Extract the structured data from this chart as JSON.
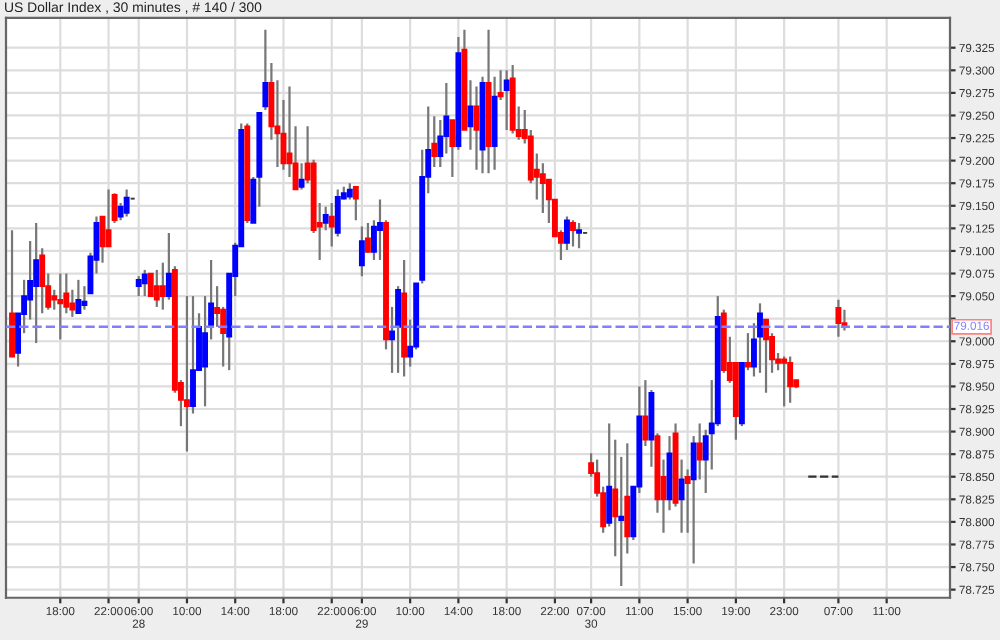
{
  "chart_data": {
    "type": "candlestick",
    "title": "US Dollar Index , 30 minutes , # 140 / 300",
    "categories": [
      null,
      null,
      null,
      null,
      null,
      null,
      null,
      null,
      "18:00",
      null,
      null,
      null,
      null,
      null,
      null,
      null,
      "22:00",
      null,
      null,
      null,
      null,
      "06:00\n28",
      null,
      null,
      null,
      null,
      null,
      null,
      null,
      "10:00",
      null,
      null,
      null,
      null,
      null,
      null,
      null,
      "14:00",
      null,
      null,
      null,
      null,
      null,
      null,
      null,
      "18:00",
      null,
      null,
      null,
      null,
      null,
      null,
      null,
      "22:00",
      null,
      null,
      null,
      null,
      "06:00\n29",
      null,
      null,
      null,
      null,
      null,
      null,
      null,
      "10:00",
      null,
      null,
      null,
      null,
      null,
      null,
      null,
      "14:00",
      null,
      null,
      null,
      null,
      null,
      null,
      null,
      "18:00",
      null,
      null,
      null,
      null,
      null,
      null,
      null,
      "22:00",
      null,
      null,
      null,
      null,
      null,
      "07:00\n30",
      null,
      null,
      null,
      null,
      null,
      null,
      null,
      "11:00",
      null,
      null,
      null,
      null,
      null,
      null,
      null,
      "15:00",
      null,
      null,
      null,
      null,
      null,
      null,
      null,
      "19:00",
      null,
      null,
      null,
      null,
      null,
      null,
      null,
      "23:00",
      null,
      null,
      null,
      null,
      null,
      null,
      null,
      null,
      "07:00",
      null,
      null,
      null,
      null,
      null,
      null,
      null,
      "11:00",
      null,
      null,
      null,
      null,
      null,
      null,
      null,
      null,
      null,
      null
    ],
    "ohlc": [
      [
        79.031,
        79.123,
        78.983,
        78.983
      ],
      [
        78.987,
        79.031,
        78.972,
        79.031
      ],
      [
        79.03,
        79.068,
        79.009,
        79.05
      ],
      [
        79.046,
        79.111,
        79.024,
        79.067
      ],
      [
        79.061,
        79.131,
        78.998,
        79.09
      ],
      [
        79.095,
        79.103,
        79.031,
        79.061
      ],
      [
        79.061,
        79.075,
        79.035,
        79.038
      ],
      [
        79.05,
        79.057,
        79.035,
        79.046
      ],
      [
        79.046,
        79.075,
        79.002,
        79.042
      ],
      [
        79.053,
        79.075,
        79.031,
        79.038
      ],
      [
        79.042,
        79.057,
        79.027,
        79.035
      ],
      [
        79.031,
        79.068,
        79.031,
        79.046
      ],
      [
        79.04,
        79.061,
        79.035,
        79.044
      ],
      [
        79.053,
        79.098,
        79.053,
        79.094
      ],
      [
        79.09,
        79.138,
        79.075,
        79.131
      ],
      [
        79.138,
        79.138,
        79.087,
        79.105
      ],
      [
        79.123,
        79.168,
        79.105,
        79.105
      ],
      [
        79.162,
        79.164,
        79.131,
        79.134
      ],
      [
        79.138,
        79.153,
        79.134,
        79.149
      ],
      [
        79.142,
        79.168,
        79.138,
        79.159
      ],
      [
        79.158,
        79.159,
        79.157,
        79.158
      ],
      [
        79.061,
        79.072,
        79.05,
        79.068
      ],
      [
        79.064,
        79.079,
        79.05,
        79.074
      ],
      [
        79.075,
        79.075,
        79.05,
        79.05
      ],
      [
        79.061,
        79.079,
        79.038,
        79.046
      ],
      [
        79.061,
        79.087,
        79.035,
        79.05
      ],
      [
        79.05,
        79.12,
        79.046,
        79.075
      ],
      [
        79.079,
        79.083,
        78.943,
        78.946
      ],
      [
        78.954,
        78.957,
        78.906,
        78.935
      ],
      [
        78.935,
        79.05,
        78.878,
        78.928
      ],
      [
        78.928,
        79.05,
        78.92,
        78.968
      ],
      [
        78.968,
        79.031,
        78.968,
        79.016
      ],
      [
        78.972,
        79.05,
        78.928,
        79.009
      ],
      [
        79.016,
        79.09,
        79.002,
        79.042
      ],
      [
        79.037,
        79.061,
        79.016,
        79.031
      ],
      [
        79.035,
        79.038,
        78.972,
        79.009
      ],
      [
        79.005,
        79.075,
        78.968,
        79.075
      ],
      [
        79.072,
        79.109,
        79.05,
        79.106
      ],
      [
        79.105,
        79.241,
        79.105,
        79.234
      ],
      [
        79.238,
        79.241,
        79.131,
        79.134
      ],
      [
        79.131,
        79.182,
        79.131,
        79.179
      ],
      [
        79.182,
        79.253,
        79.149,
        79.253
      ],
      [
        79.26,
        79.345,
        79.256,
        79.286
      ],
      [
        79.286,
        79.308,
        79.223,
        79.238
      ],
      [
        79.238,
        79.289,
        79.193,
        79.23
      ],
      [
        79.23,
        79.267,
        79.19,
        79.197
      ],
      [
        79.208,
        79.282,
        79.182,
        79.197
      ],
      [
        79.197,
        79.238,
        79.168,
        79.168
      ],
      [
        79.171,
        79.197,
        79.168,
        79.179
      ],
      [
        79.197,
        79.238,
        79.175,
        79.179
      ],
      [
        79.197,
        79.201,
        79.12,
        79.123
      ],
      [
        79.131,
        79.153,
        79.09,
        79.127
      ],
      [
        79.131,
        79.149,
        79.123,
        79.14
      ],
      [
        79.138,
        79.153,
        79.105,
        79.127
      ],
      [
        79.12,
        79.168,
        79.116,
        79.16
      ],
      [
        79.158,
        79.171,
        79.157,
        79.164
      ],
      [
        79.16,
        79.175,
        79.157,
        79.168
      ],
      [
        79.171,
        79.171,
        79.134,
        79.158
      ],
      [
        79.084,
        79.127,
        79.072,
        79.111
      ],
      [
        79.114,
        79.131,
        79.098,
        79.099
      ],
      [
        79.099,
        79.134,
        79.09,
        79.127
      ],
      [
        79.123,
        79.157,
        79.09,
        79.131
      ],
      [
        79.131,
        79.134,
        78.991,
        79.002
      ],
      [
        79.002,
        79.038,
        78.965,
        79.011
      ],
      [
        79.016,
        79.061,
        78.965,
        79.057
      ],
      [
        79.053,
        79.09,
        78.961,
        78.983
      ],
      [
        78.983,
        79.024,
        78.972,
        78.994
      ],
      [
        78.994,
        79.064,
        78.991,
        79.064
      ],
      [
        79.068,
        79.212,
        79.064,
        79.182
      ],
      [
        79.182,
        79.26,
        79.164,
        79.212
      ],
      [
        79.219,
        79.249,
        79.193,
        79.205
      ],
      [
        79.205,
        79.245,
        79.193,
        79.227
      ],
      [
        79.227,
        79.286,
        79.208,
        79.249
      ],
      [
        79.245,
        79.245,
        79.182,
        79.216
      ],
      [
        79.216,
        79.337,
        79.212,
        79.319
      ],
      [
        79.323,
        79.345,
        79.234,
        79.234
      ],
      [
        79.238,
        79.289,
        79.212,
        79.26
      ],
      [
        79.26,
        79.282,
        79.19,
        79.234
      ],
      [
        79.212,
        79.293,
        79.186,
        79.286
      ],
      [
        79.286,
        79.345,
        79.186,
        79.216
      ],
      [
        79.216,
        79.293,
        79.19,
        79.271
      ],
      [
        79.275,
        79.3,
        79.267,
        79.271
      ],
      [
        79.278,
        79.3,
        79.234,
        79.289
      ],
      [
        79.291,
        79.306,
        79.23,
        79.234
      ],
      [
        79.234,
        79.26,
        79.223,
        79.227
      ],
      [
        79.234,
        79.256,
        79.219,
        79.225
      ],
      [
        79.227,
        79.234,
        79.175,
        79.179
      ],
      [
        79.19,
        79.208,
        79.157,
        79.182
      ],
      [
        79.185,
        79.197,
        79.142,
        79.175
      ],
      [
        79.179,
        79.179,
        79.131,
        79.157
      ],
      [
        79.157,
        79.157,
        79.116,
        79.116
      ],
      [
        79.12,
        79.123,
        79.09,
        79.109
      ],
      [
        79.109,
        79.138,
        79.101,
        79.134
      ],
      [
        79.131,
        79.134,
        79.105,
        79.123
      ],
      [
        79.12,
        79.131,
        79.103,
        79.123
      ],
      [
        79.12,
        79.121,
        79.119,
        79.12
      ],
      [
        78.865,
        78.876,
        78.85,
        78.854
      ],
      [
        78.854,
        78.869,
        78.828,
        78.832
      ],
      [
        78.832,
        78.839,
        78.788,
        78.795
      ],
      [
        78.799,
        78.909,
        78.795,
        78.839
      ],
      [
        78.836,
        78.891,
        78.762,
        78.806
      ],
      [
        78.802,
        78.872,
        78.729,
        78.806
      ],
      [
        78.828,
        78.887,
        78.765,
        78.784
      ],
      [
        78.784,
        78.839,
        78.78,
        78.839
      ],
      [
        78.839,
        78.95,
        78.832,
        78.917
      ],
      [
        78.917,
        78.957,
        78.884,
        78.891
      ],
      [
        78.891,
        78.946,
        78.861,
        78.943
      ],
      [
        78.895,
        78.898,
        78.81,
        78.825
      ],
      [
        78.85,
        78.869,
        78.788,
        78.825
      ],
      [
        78.825,
        78.895,
        78.813,
        78.876
      ],
      [
        78.898,
        78.909,
        78.817,
        78.821
      ],
      [
        78.825,
        78.869,
        78.788,
        78.847
      ],
      [
        78.85,
        78.858,
        78.788,
        78.843
      ],
      [
        78.847,
        78.895,
        78.754,
        78.887
      ],
      [
        78.887,
        78.909,
        78.847,
        78.869
      ],
      [
        78.869,
        78.902,
        78.832,
        78.895
      ],
      [
        78.898,
        78.957,
        78.858,
        78.909
      ],
      [
        78.909,
        79.05,
        78.906,
        79.027
      ],
      [
        79.031,
        79.035,
        78.965,
        78.968
      ],
      [
        78.976,
        79.005,
        78.954,
        78.957
      ],
      [
        78.976,
        78.976,
        78.891,
        78.917
      ],
      [
        78.909,
        78.976,
        78.906,
        78.976
      ],
      [
        78.976,
        79.009,
        78.968,
        78.972
      ],
      [
        78.972,
        79.02,
        78.961,
        79.002
      ],
      [
        79.005,
        79.042,
        78.965,
        79.031
      ],
      [
        79.024,
        79.024,
        78.943,
        79.002
      ],
      [
        79.005,
        79.009,
        78.965,
        78.98
      ],
      [
        78.98,
        78.987,
        78.968,
        78.976
      ],
      [
        78.98,
        78.983,
        78.928,
        78.976
      ],
      [
        78.976,
        78.983,
        78.932,
        78.95
      ],
      [
        78.957,
        78.957,
        78.948,
        78.95
      ],
      null,
      null,
      null,
      null,
      null,
      null,
      [
        79.037,
        79.046,
        79.005,
        79.02
      ],
      [
        79.02,
        79.035,
        79.012,
        79.016
      ],
      null,
      null,
      null,
      null,
      null,
      null,
      null,
      null,
      null,
      null,
      null,
      null,
      null,
      null,
      null,
      null,
      null
    ],
    "colors": [
      "#ff0000",
      "#0000ff",
      "#0000ff",
      "#0000ff",
      "#0000ff",
      "#ff0000",
      "#ff0000",
      "#ff0000",
      "#ff0000",
      "#ff0000",
      "#ff0000",
      "#0000ff",
      "#0000ff",
      "#0000ff",
      "#0000ff",
      "#ff0000",
      "#ff0000",
      "#ff0000",
      "#0000ff",
      "#0000ff",
      "#404040",
      "#0000ff",
      "#0000ff",
      "#ff0000",
      "#ff0000",
      "#ff0000",
      "#0000ff",
      "#ff0000",
      "#ff0000",
      "#ff0000",
      "#0000ff",
      "#0000ff",
      "#0000ff",
      "#0000ff",
      "#ff0000",
      "#ff0000",
      "#0000ff",
      "#0000ff",
      "#0000ff",
      "#ff0000",
      "#0000ff",
      "#0000ff",
      "#0000ff",
      "#ff0000",
      "#ff0000",
      "#ff0000",
      "#ff0000",
      "#ff0000",
      "#0000ff",
      "#ff0000",
      "#ff0000",
      "#ff0000",
      "#0000ff",
      "#ff0000",
      "#0000ff",
      "#0000ff",
      "#0000ff",
      "#ff0000",
      "#0000ff",
      "#ff0000",
      "#0000ff",
      "#0000ff",
      "#ff0000",
      "#0000ff",
      "#0000ff",
      "#ff0000",
      "#0000ff",
      "#0000ff",
      "#0000ff",
      "#0000ff",
      "#ff0000",
      "#0000ff",
      "#0000ff",
      "#ff0000",
      "#0000ff",
      "#ff0000",
      "#0000ff",
      "#ff0000",
      "#0000ff",
      "#ff0000",
      "#0000ff",
      "#ff0000",
      "#0000ff",
      "#ff0000",
      "#ff0000",
      "#ff0000",
      "#ff0000",
      "#ff0000",
      "#ff0000",
      "#ff0000",
      "#ff0000",
      "#ff0000",
      "#0000ff",
      "#ff0000",
      "#0000ff",
      "#404040",
      "#ff0000",
      "#ff0000",
      "#ff0000",
      "#0000ff",
      "#ff0000",
      "#0000ff",
      "#ff0000",
      "#0000ff",
      "#0000ff",
      "#ff0000",
      "#0000ff",
      "#ff0000",
      "#ff0000",
      "#0000ff",
      "#ff0000",
      "#0000ff",
      "#ff0000",
      "#0000ff",
      "#ff0000",
      "#0000ff",
      "#0000ff",
      "#0000ff",
      "#ff0000",
      "#ff0000",
      "#ff0000",
      "#0000ff",
      "#ff0000",
      "#0000ff",
      "#0000ff",
      "#ff0000",
      "#ff0000",
      "#ff0000",
      "#ff0000",
      "#ff0000",
      "#ff0000",
      null,
      null,
      null,
      null,
      null,
      null,
      "#ff0000",
      "#ff0000",
      null,
      null,
      null,
      null,
      null,
      null,
      null,
      null,
      null,
      null,
      null,
      null,
      null,
      null,
      null,
      null,
      null
    ],
    "series": [
      {
        "type": "line",
        "color": "#333333",
        "line_style": "dashed",
        "values": [
          null,
          null,
          null,
          null,
          null,
          null,
          null,
          null,
          null,
          null,
          null,
          null,
          null,
          null,
          null,
          null,
          null,
          null,
          null,
          null,
          null,
          null,
          null,
          null,
          null,
          null,
          null,
          null,
          null,
          null,
          null,
          null,
          null,
          null,
          null,
          null,
          null,
          null,
          null,
          null,
          null,
          null,
          null,
          null,
          null,
          null,
          null,
          null,
          null,
          null,
          null,
          null,
          null,
          null,
          null,
          null,
          null,
          null,
          null,
          null,
          null,
          null,
          null,
          null,
          null,
          null,
          null,
          null,
          null,
          null,
          null,
          null,
          null,
          null,
          null,
          null,
          null,
          null,
          null,
          null,
          null,
          null,
          null,
          null,
          null,
          null,
          null,
          null,
          null,
          null,
          null,
          null,
          null,
          null,
          null,
          null,
          null,
          null,
          null,
          null,
          null,
          null,
          null,
          null,
          null,
          null,
          null,
          null,
          null,
          null,
          null,
          null,
          null,
          null,
          null,
          null,
          null,
          null,
          null,
          null,
          null,
          null,
          null,
          null,
          null,
          null,
          null,
          null,
          null,
          null,
          null,
          null,
          78.85,
          78.85,
          78.85,
          78.85,
          78.85,
          78.85,
          null,
          null,
          null,
          null,
          null,
          null,
          null,
          null,
          null,
          null,
          null,
          null,
          null,
          null,
          null,
          null,
          null,
          null
        ]
      }
    ],
    "ref_lines": [
      {
        "axis": "y",
        "value": 79.016,
        "label": "79.016",
        "color": "#8080ff",
        "line_style": "dashed"
      }
    ],
    "ylim": [
      78.716,
      79.358
    ],
    "yticks": [
      78.725,
      {
        "value": 78.75,
        "label": "78.750"
      },
      78.775,
      {
        "value": 78.8,
        "label": "78.800"
      },
      78.825,
      {
        "value": 78.85,
        "label": "78.850"
      },
      78.875,
      {
        "value": 78.9,
        "label": "78.900"
      },
      78.925,
      {
        "value": 78.95,
        "label": "78.950"
      },
      78.975,
      {
        "value": 79.0,
        "label": "79.000"
      },
      {
        "value": 79.025,
        "label": null
      },
      {
        "value": 79.05,
        "label": "79.050"
      },
      79.075,
      {
        "value": 79.1,
        "label": "79.100"
      },
      79.125,
      {
        "value": 79.15,
        "label": "79.150"
      },
      79.175,
      {
        "value": 79.2,
        "label": "79.200"
      },
      79.225,
      {
        "value": 79.25,
        "label": "79.250"
      },
      79.275,
      {
        "value": 79.3,
        "label": "79.300"
      },
      79.325
    ],
    "grid": true
  }
}
